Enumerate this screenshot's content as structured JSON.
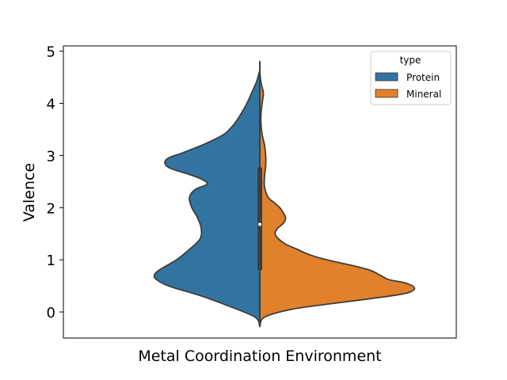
{
  "chart_data": {
    "type": "violin",
    "title": "",
    "xlabel": "Metal Coordination Environment",
    "ylabel": "Valence",
    "ylim": [
      -0.5,
      5.1
    ],
    "yticks": [
      0,
      1,
      2,
      3,
      4,
      5
    ],
    "grid": false,
    "legend": {
      "title": "type",
      "placement": "top-right",
      "entries": [
        {
          "name": "Protein",
          "color": "#3274a1"
        },
        {
          "name": "Mineral",
          "color": "#e1812c"
        }
      ]
    },
    "split": true,
    "series": [
      {
        "name": "Protein",
        "side": "left",
        "color": "#3274a1",
        "density_profile": {
          "y": [
            -0.28,
            -0.1,
            0.1,
            0.3,
            0.5,
            0.62,
            0.7,
            0.8,
            1.0,
            1.2,
            1.4,
            1.6,
            1.8,
            2.0,
            2.2,
            2.35,
            2.45,
            2.55,
            2.65,
            2.75,
            2.85,
            2.95,
            3.05,
            3.2,
            3.4,
            3.6,
            3.8,
            4.0,
            4.2,
            4.4,
            4.55,
            4.65,
            4.8
          ],
          "width": [
            0.0,
            0.04,
            0.25,
            0.49,
            0.78,
            0.88,
            0.9,
            0.86,
            0.71,
            0.6,
            0.51,
            0.5,
            0.53,
            0.58,
            0.6,
            0.55,
            0.45,
            0.5,
            0.62,
            0.76,
            0.81,
            0.78,
            0.66,
            0.49,
            0.31,
            0.22,
            0.16,
            0.11,
            0.07,
            0.03,
            0.01,
            0.0,
            0.0
          ]
        }
      },
      {
        "name": "Mineral",
        "side": "right",
        "color": "#e1812c",
        "density_profile": {
          "y": [
            -0.28,
            -0.1,
            0.05,
            0.15,
            0.25,
            0.35,
            0.45,
            0.55,
            0.62,
            0.7,
            0.8,
            0.9,
            1.0,
            1.1,
            1.2,
            1.3,
            1.4,
            1.5,
            1.6,
            1.7,
            1.8,
            1.9,
            2.0,
            2.1,
            2.2,
            2.4,
            2.6,
            2.8,
            3.0,
            3.2,
            3.4,
            3.6,
            3.8,
            4.0,
            4.2,
            4.4,
            4.6,
            4.8
          ],
          "width": [
            0.0,
            0.04,
            0.27,
            0.58,
            0.93,
            1.23,
            1.32,
            1.25,
            1.1,
            1.03,
            0.94,
            0.77,
            0.57,
            0.42,
            0.32,
            0.22,
            0.16,
            0.13,
            0.15,
            0.2,
            0.22,
            0.2,
            0.17,
            0.12,
            0.07,
            0.04,
            0.04,
            0.05,
            0.05,
            0.04,
            0.02,
            0.01,
            0.01,
            0.02,
            0.03,
            0.01,
            0.0,
            0.0
          ]
        }
      }
    ],
    "inner_box": {
      "q1": 0.8,
      "median": 1.68,
      "q3": 2.77,
      "whisker_low": -0.28,
      "whisker_high": 4.8
    }
  }
}
